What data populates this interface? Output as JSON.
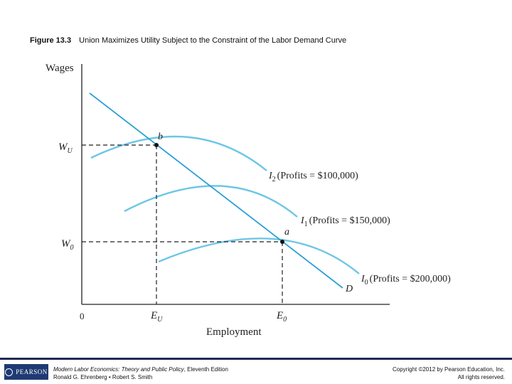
{
  "figure": {
    "number": "Figure 13.3",
    "title": "Union Maximizes Utility Subject to the Constraint of the Labor Demand Curve"
  },
  "diagram": {
    "y_axis_label": "Wages",
    "x_axis_label": "Employment",
    "origin_label": "0",
    "wage_labels": {
      "wu": "W",
      "wu_sub": "U",
      "w0": "W",
      "w0_sub": "0"
    },
    "employment_labels": {
      "eu": "E",
      "eu_sub": "U",
      "e0": "E",
      "e0_sub": "0"
    },
    "point_labels": {
      "b": "b",
      "a": "a"
    },
    "demand_label": "D",
    "curves": [
      {
        "id": "I2",
        "letter": "I",
        "sub": "2",
        "profits_text": "(Profits = $100,000)"
      },
      {
        "id": "I1",
        "letter": "I",
        "sub": "1",
        "profits_text": "(Profits = $150,000)"
      },
      {
        "id": "I0",
        "letter": "I",
        "sub": "0",
        "profits_text": "(Profits = $200,000)"
      }
    ],
    "colors": {
      "curve": "#6ec6e6",
      "demand": "#2a9fd6",
      "axis": "#222222"
    }
  },
  "footer": {
    "logo_text": "PEARSON",
    "book_title": "Modern Labor Economics: Theory and Public Policy",
    "edition": ", Eleventh Edition",
    "authors": "Ronald G. Ehrenberg • Robert S. Smith",
    "copyright": "Copyright ©2012 by Pearson Education, Inc.",
    "rights": "All rights reserved."
  }
}
